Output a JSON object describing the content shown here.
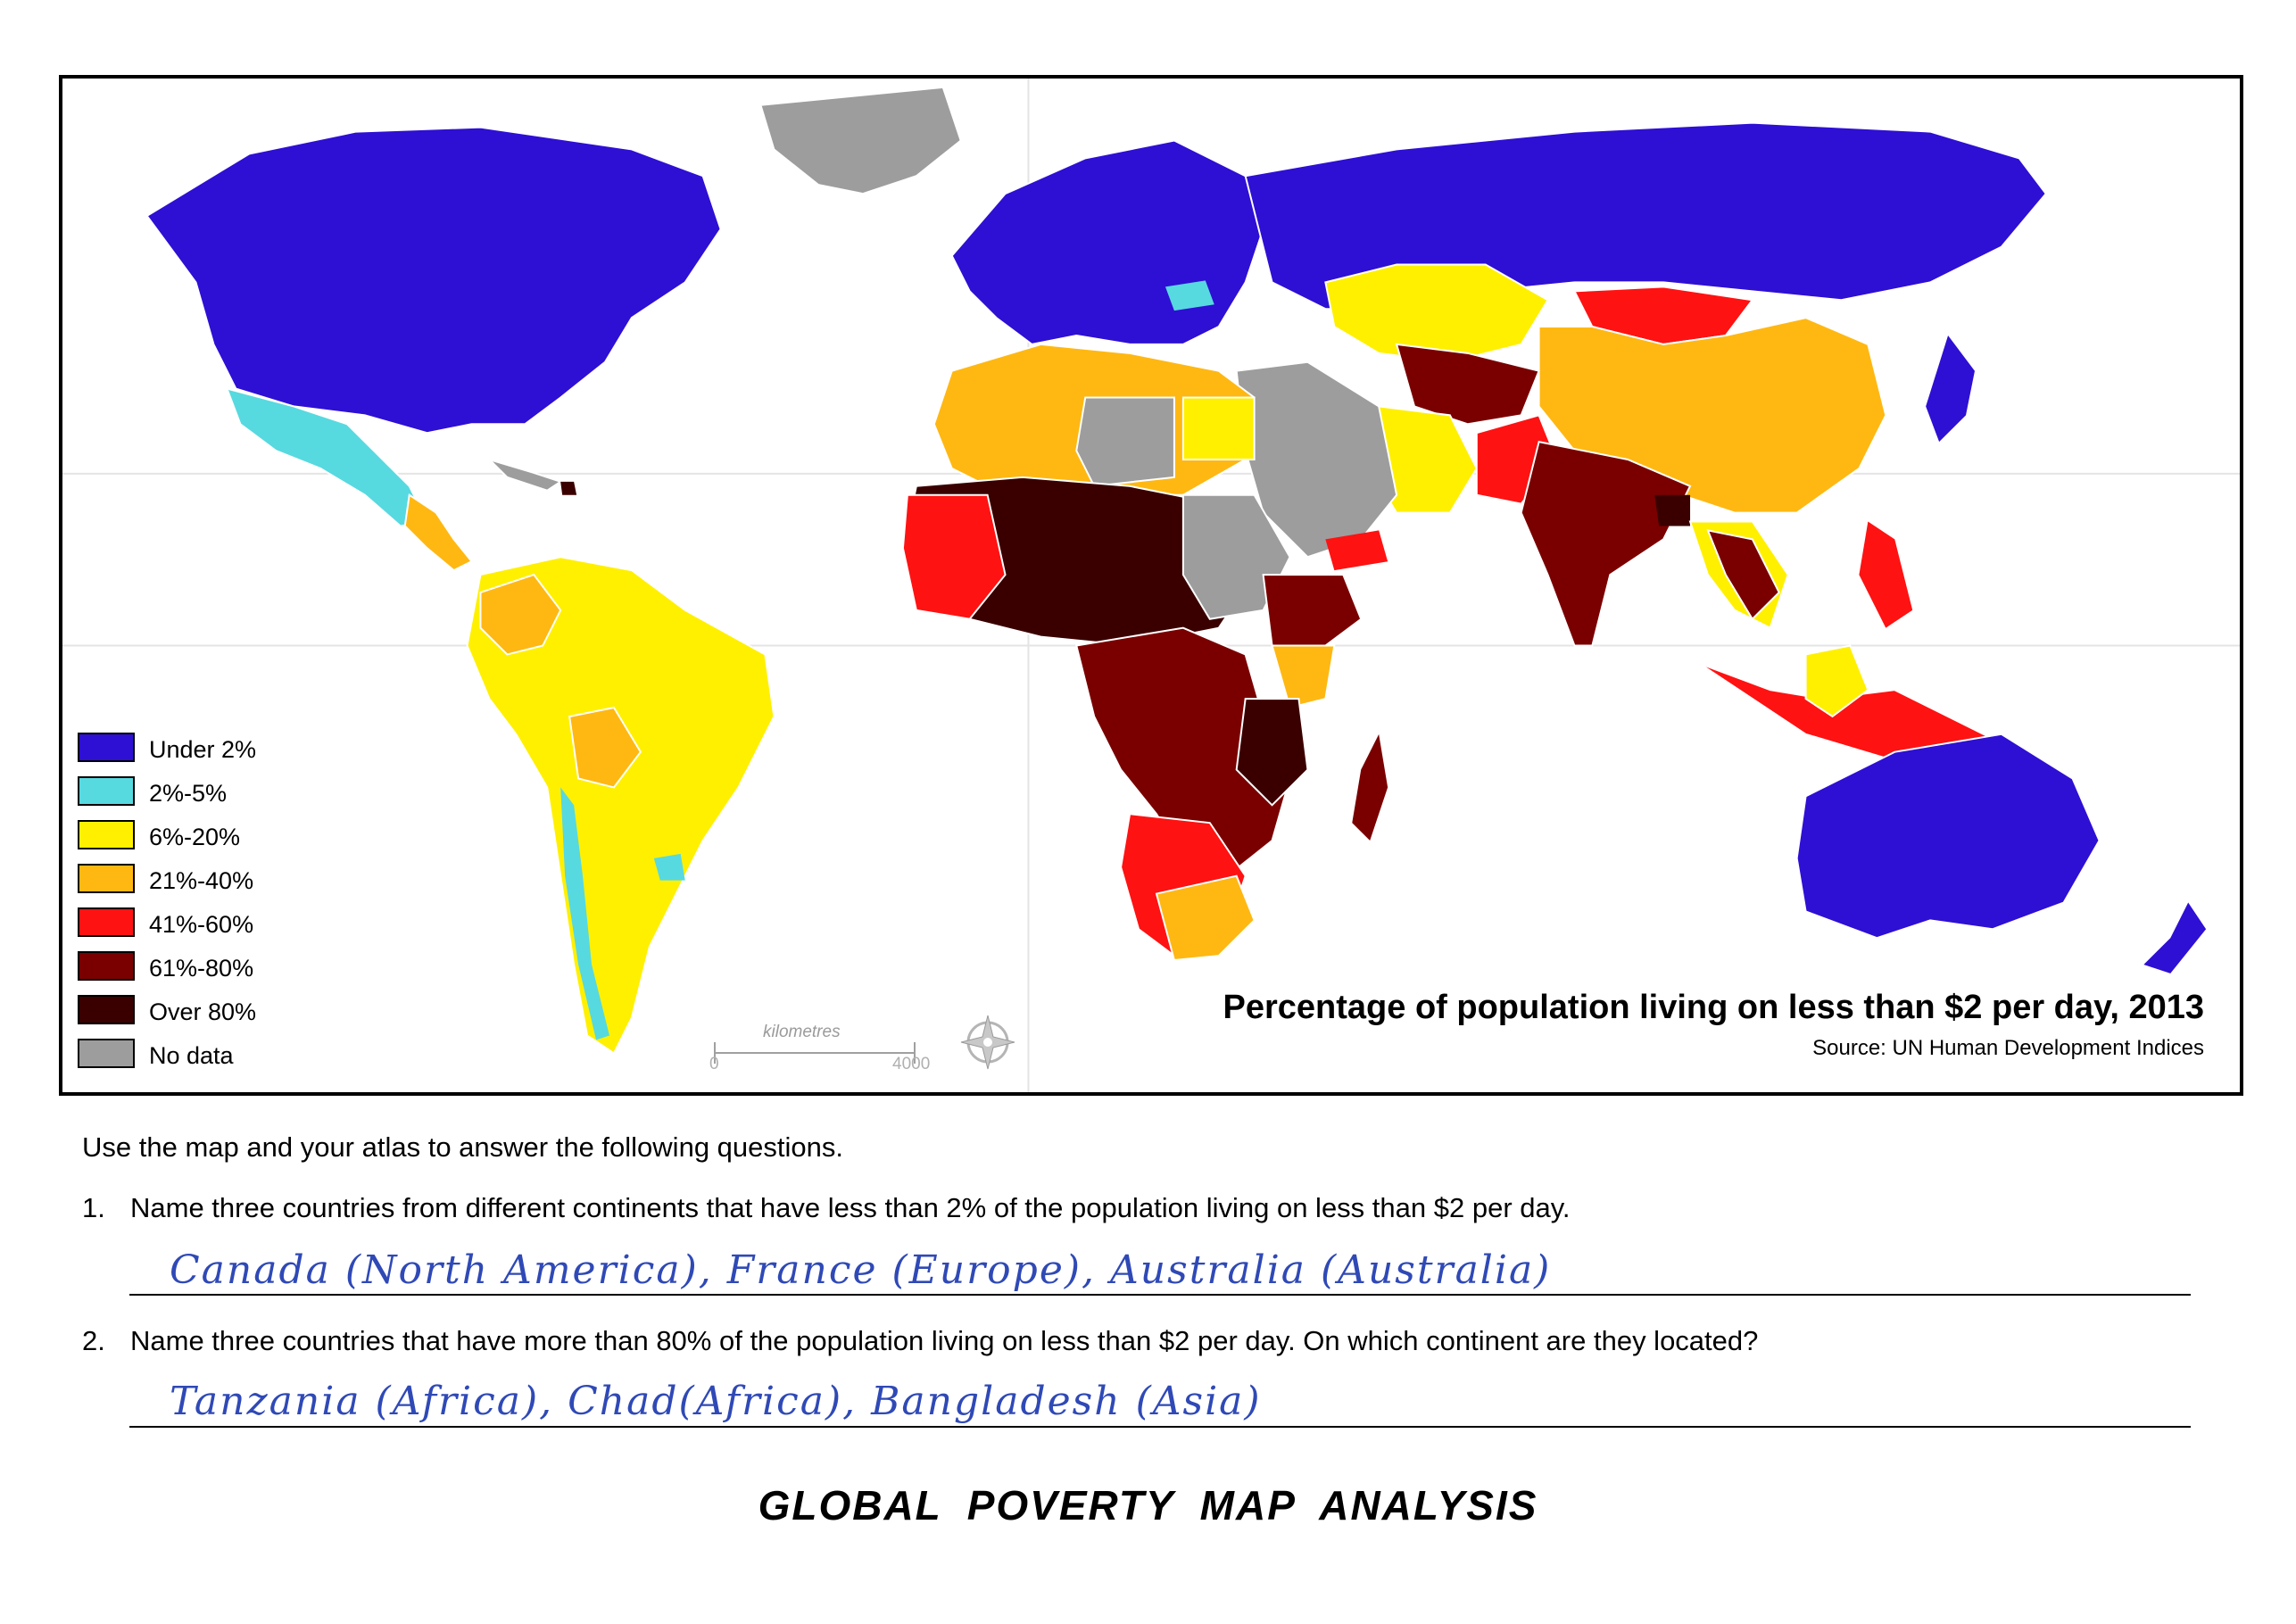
{
  "map": {
    "title": "Percentage of population living on less than $2 per day, 2013",
    "source": "Source: UN Human Development Indices",
    "legend": [
      {
        "label": "Under 2%",
        "color": "#2e0fd4"
      },
      {
        "label": "2%-5%",
        "color": "#57d9e0"
      },
      {
        "label": "6%-20%",
        "color": "#fff000"
      },
      {
        "label": "21%-40%",
        "color": "#ffb812"
      },
      {
        "label": "41%-60%",
        "color": "#ff1212"
      },
      {
        "label": "61%-80%",
        "color": "#7a0000"
      },
      {
        "label": "Over 80%",
        "color": "#3a0000"
      },
      {
        "label": "No data",
        "color": "#9d9d9d"
      }
    ],
    "scale_bar": {
      "unit": "kilometres",
      "start": "0",
      "end": "4000"
    },
    "compass_icon": "compass-rose-icon"
  },
  "worksheet": {
    "intro": "Use the map and your atlas to answer the following questions.",
    "questions": [
      {
        "number": "1.",
        "text": "Name three countries from different continents that have less than 2% of the population living on less than $2 per day.",
        "answer": "Canada (North America), France (Europe), Australia (Australia)"
      },
      {
        "number": "2.",
        "text": "Name three countries that have more than 80% of the population living on less than $2 per day. On which continent are they located?",
        "answer": "Tanzania (Africa), Chad(Africa), Bangladesh (Asia)"
      }
    ],
    "footer_title": "GLOBAL  POVERTY  MAP  ANALYSIS"
  }
}
